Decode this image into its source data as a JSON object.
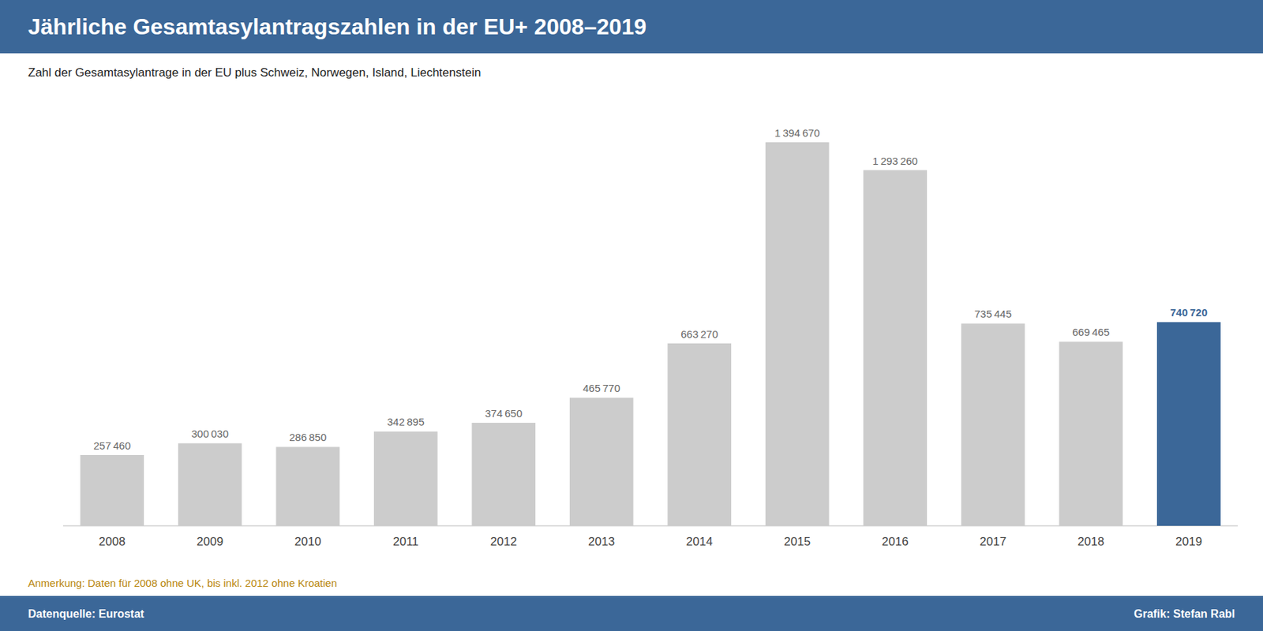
{
  "chart_data": {
    "type": "bar",
    "title": "Jährliche Gesamtasylantragszahlen in der EU+ 2008–2019",
    "subtitle": "Zahl der Gesamtasylantrage in der EU plus Schweiz, Norwegen, Island, Liechtenstein",
    "annotations": [
      "Anmerkung: Daten für 2008 ohne UK, bis inkl. 2012 ohne Kroatien",
      "Datenquelle: Eurostat",
      "Grafik: Stefan Rabl"
    ],
    "categories": [
      "2008",
      "2009",
      "2010",
      "2011",
      "2012",
      "2013",
      "2014",
      "2015",
      "2016",
      "2017",
      "2018",
      "2019"
    ],
    "values": [
      257460,
      300030,
      286850,
      342895,
      374650,
      465770,
      663270,
      1394670,
      1293260,
      735445,
      669465,
      740720
    ],
    "value_labels": [
      "257 460",
      "300 030",
      "286 850",
      "342 895",
      "374 650",
      "465 770",
      "663 270",
      "1 394 670",
      "1 293 260",
      "735 445",
      "669 465",
      "740 720"
    ],
    "colors": [
      "#cccccc",
      "#cccccc",
      "#cccccc",
      "#cccccc",
      "#cccccc",
      "#cccccc",
      "#cccccc",
      "#cccccc",
      "#cccccc",
      "#cccccc",
      "#cccccc",
      "#3b6798"
    ],
    "ylim": [
      0,
      1560000
    ],
    "data_labels": true,
    "tick_labels": "x",
    "grid": false
  }
}
